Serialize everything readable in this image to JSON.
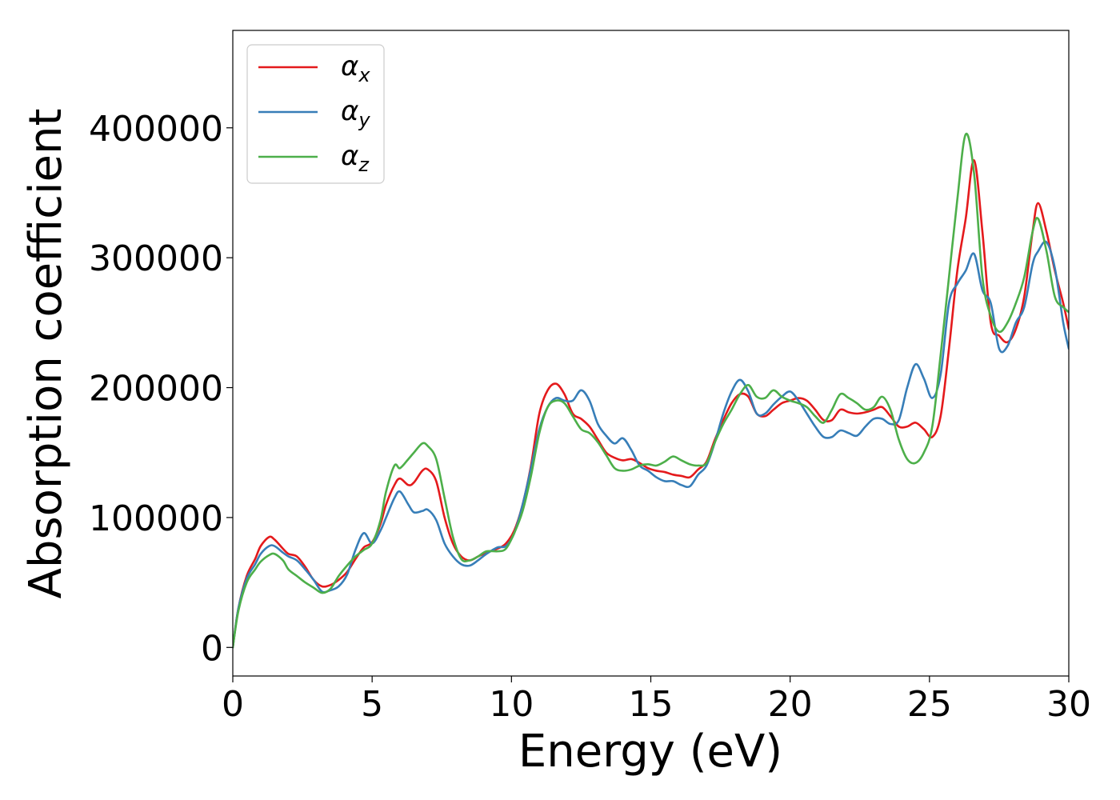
{
  "chart_data": {
    "type": "line",
    "title": "",
    "xlabel": "Energy (eV)",
    "ylabel": "Absorption coefficient",
    "xlim": [
      0,
      30
    ],
    "ylim": [
      -22000,
      475000
    ],
    "xticks": [
      0,
      5,
      10,
      15,
      20,
      25,
      30
    ],
    "xtick_labels": [
      "0",
      "5",
      "10",
      "15",
      "20",
      "25",
      "30"
    ],
    "yticks": [
      0,
      100000,
      200000,
      300000,
      400000
    ],
    "ytick_labels": [
      "0",
      "100000",
      "200000",
      "300000",
      "400000"
    ],
    "grid": false,
    "legend_position": "top-left",
    "series": [
      {
        "name": "αx",
        "symbol": "α",
        "subscript": "x",
        "color": "#e41a1c",
        "x": [
          0,
          0.2,
          0.5,
          0.8,
          1.0,
          1.3,
          1.5,
          1.8,
          2.0,
          2.3,
          2.6,
          2.9,
          3.2,
          3.5,
          3.8,
          4.1,
          4.4,
          4.7,
          5.0,
          5.3,
          5.5,
          5.8,
          6.0,
          6.3,
          6.5,
          6.8,
          7.0,
          7.3,
          7.6,
          7.9,
          8.2,
          8.5,
          8.8,
          9.1,
          9.5,
          9.8,
          10.1,
          10.4,
          10.7,
          11.0,
          11.3,
          11.6,
          11.9,
          12.2,
          12.5,
          12.8,
          13.1,
          13.4,
          13.7,
          14.0,
          14.3,
          14.6,
          14.9,
          15.2,
          15.5,
          15.8,
          16.1,
          16.4,
          16.7,
          17.0,
          17.3,
          17.6,
          17.9,
          18.2,
          18.5,
          18.8,
          19.1,
          19.4,
          19.7,
          20.0,
          20.3,
          20.6,
          20.9,
          21.2,
          21.5,
          21.8,
          22.1,
          22.4,
          22.7,
          23.0,
          23.3,
          23.6,
          23.9,
          24.2,
          24.5,
          24.8,
          25.1,
          25.4,
          25.7,
          26.0,
          26.3,
          26.6,
          26.9,
          27.2,
          27.5,
          27.8,
          28.1,
          28.4,
          28.7,
          28.9,
          29.2,
          29.5,
          29.8,
          30.0
        ],
        "values": [
          0,
          30000,
          55000,
          68000,
          78000,
          85000,
          83000,
          76000,
          72000,
          70000,
          62000,
          52000,
          47000,
          48000,
          52000,
          58000,
          68000,
          77000,
          81000,
          95000,
          110000,
          125000,
          130000,
          125000,
          127000,
          136000,
          137000,
          128000,
          100000,
          80000,
          70000,
          67000,
          70000,
          73000,
          76000,
          80000,
          90000,
          110000,
          140000,
          180000,
          198000,
          203000,
          195000,
          180000,
          176000,
          170000,
          160000,
          150000,
          146000,
          144000,
          145000,
          142000,
          138000,
          136000,
          135000,
          133000,
          132000,
          131000,
          137000,
          143000,
          160000,
          175000,
          188000,
          195000,
          193000,
          180000,
          178000,
          183000,
          188000,
          190000,
          192000,
          190000,
          183000,
          175000,
          175000,
          183000,
          181000,
          180000,
          181000,
          183000,
          185000,
          178000,
          170000,
          170000,
          173000,
          168000,
          162000,
          178000,
          230000,
          290000,
          330000,
          375000,
          320000,
          250000,
          240000,
          235000,
          245000,
          270000,
          320000,
          342000,
          320000,
          290000,
          265000,
          245000
        ]
      },
      {
        "name": "αy",
        "symbol": "α",
        "subscript": "y",
        "color": "#377eb8",
        "x": [
          0,
          0.2,
          0.5,
          0.8,
          1.0,
          1.3,
          1.5,
          1.8,
          2.0,
          2.3,
          2.6,
          2.9,
          3.2,
          3.5,
          3.8,
          4.1,
          4.4,
          4.7,
          5.0,
          5.3,
          5.5,
          5.8,
          6.0,
          6.3,
          6.5,
          6.8,
          7.0,
          7.3,
          7.6,
          7.9,
          8.2,
          8.5,
          8.8,
          9.1,
          9.5,
          9.8,
          10.1,
          10.4,
          10.7,
          11.0,
          11.3,
          11.6,
          11.9,
          12.2,
          12.5,
          12.8,
          13.1,
          13.4,
          13.7,
          14.0,
          14.3,
          14.6,
          14.9,
          15.2,
          15.5,
          15.8,
          16.1,
          16.4,
          16.7,
          17.0,
          17.3,
          17.6,
          17.9,
          18.2,
          18.5,
          18.8,
          19.1,
          19.4,
          19.7,
          20.0,
          20.3,
          20.6,
          20.9,
          21.2,
          21.5,
          21.8,
          22.1,
          22.4,
          22.7,
          23.0,
          23.3,
          23.6,
          23.9,
          24.2,
          24.5,
          24.8,
          25.1,
          25.4,
          25.7,
          26.0,
          26.3,
          26.6,
          26.9,
          27.2,
          27.5,
          27.8,
          28.1,
          28.4,
          28.7,
          28.9,
          29.2,
          29.5,
          29.8,
          30.0
        ],
        "values": [
          0,
          30000,
          53000,
          64000,
          72000,
          78000,
          78000,
          73000,
          70000,
          67000,
          60000,
          52000,
          43000,
          44000,
          47000,
          56000,
          75000,
          88000,
          80000,
          90000,
          100000,
          115000,
          120000,
          110000,
          104000,
          105000,
          106000,
          98000,
          80000,
          70000,
          64000,
          63000,
          67000,
          72000,
          77000,
          78000,
          88000,
          110000,
          138000,
          168000,
          185000,
          192000,
          190000,
          190000,
          198000,
          190000,
          172000,
          163000,
          157000,
          161000,
          152000,
          140000,
          136000,
          131000,
          128000,
          128000,
          125000,
          124000,
          133000,
          140000,
          158000,
          180000,
          197000,
          206000,
          197000,
          180000,
          180000,
          187000,
          193000,
          197000,
          190000,
          180000,
          170000,
          162000,
          162000,
          167000,
          165000,
          163000,
          170000,
          176000,
          176000,
          172000,
          175000,
          200000,
          218000,
          207000,
          192000,
          210000,
          265000,
          280000,
          290000,
          303000,
          275000,
          265000,
          230000,
          232000,
          250000,
          262000,
          295000,
          305000,
          312000,
          292000,
          250000,
          230000
        ]
      },
      {
        "name": "αz",
        "symbol": "α",
        "subscript": "z",
        "color": "#4daf4a",
        "x": [
          0,
          0.2,
          0.5,
          0.8,
          1.0,
          1.3,
          1.5,
          1.8,
          2.0,
          2.3,
          2.6,
          2.9,
          3.2,
          3.5,
          3.8,
          4.1,
          4.4,
          4.7,
          5.0,
          5.3,
          5.5,
          5.8,
          6.0,
          6.3,
          6.5,
          6.8,
          7.0,
          7.3,
          7.6,
          7.9,
          8.2,
          8.5,
          8.8,
          9.1,
          9.5,
          9.8,
          10.1,
          10.4,
          10.7,
          11.0,
          11.3,
          11.6,
          11.9,
          12.2,
          12.5,
          12.8,
          13.1,
          13.4,
          13.7,
          14.0,
          14.3,
          14.6,
          14.9,
          15.2,
          15.5,
          15.8,
          16.1,
          16.4,
          16.7,
          17.0,
          17.3,
          17.6,
          17.9,
          18.2,
          18.5,
          18.8,
          19.1,
          19.4,
          19.7,
          20.0,
          20.3,
          20.6,
          20.9,
          21.2,
          21.5,
          21.8,
          22.1,
          22.4,
          22.7,
          23.0,
          23.3,
          23.6,
          23.9,
          24.2,
          24.5,
          24.8,
          25.1,
          25.4,
          25.7,
          26.0,
          26.3,
          26.6,
          26.9,
          27.2,
          27.5,
          27.8,
          28.1,
          28.4,
          28.7,
          28.9,
          29.2,
          29.5,
          29.8,
          30.0
        ],
        "values": [
          0,
          28000,
          50000,
          60000,
          66000,
          71000,
          72000,
          67000,
          60000,
          55000,
          50000,
          46000,
          42000,
          45000,
          55000,
          63000,
          70000,
          75000,
          80000,
          98000,
          120000,
          140000,
          138000,
          145000,
          150000,
          157000,
          155000,
          145000,
          115000,
          85000,
          68000,
          67000,
          70000,
          74000,
          74000,
          76000,
          88000,
          105000,
          132000,
          165000,
          185000,
          190000,
          188000,
          178000,
          168000,
          165000,
          158000,
          148000,
          138000,
          136000,
          137000,
          140000,
          141000,
          140000,
          143000,
          147000,
          144000,
          141000,
          140000,
          142000,
          158000,
          172000,
          183000,
          195000,
          202000,
          193000,
          192000,
          198000,
          193000,
          190000,
          188000,
          185000,
          178000,
          173000,
          183000,
          195000,
          192000,
          188000,
          183000,
          185000,
          193000,
          183000,
          160000,
          145000,
          142000,
          150000,
          170000,
          225000,
          285000,
          345000,
          395000,
          365000,
          285000,
          255000,
          243000,
          250000,
          265000,
          285000,
          320000,
          330000,
          305000,
          270000,
          262000,
          258000
        ]
      }
    ]
  }
}
